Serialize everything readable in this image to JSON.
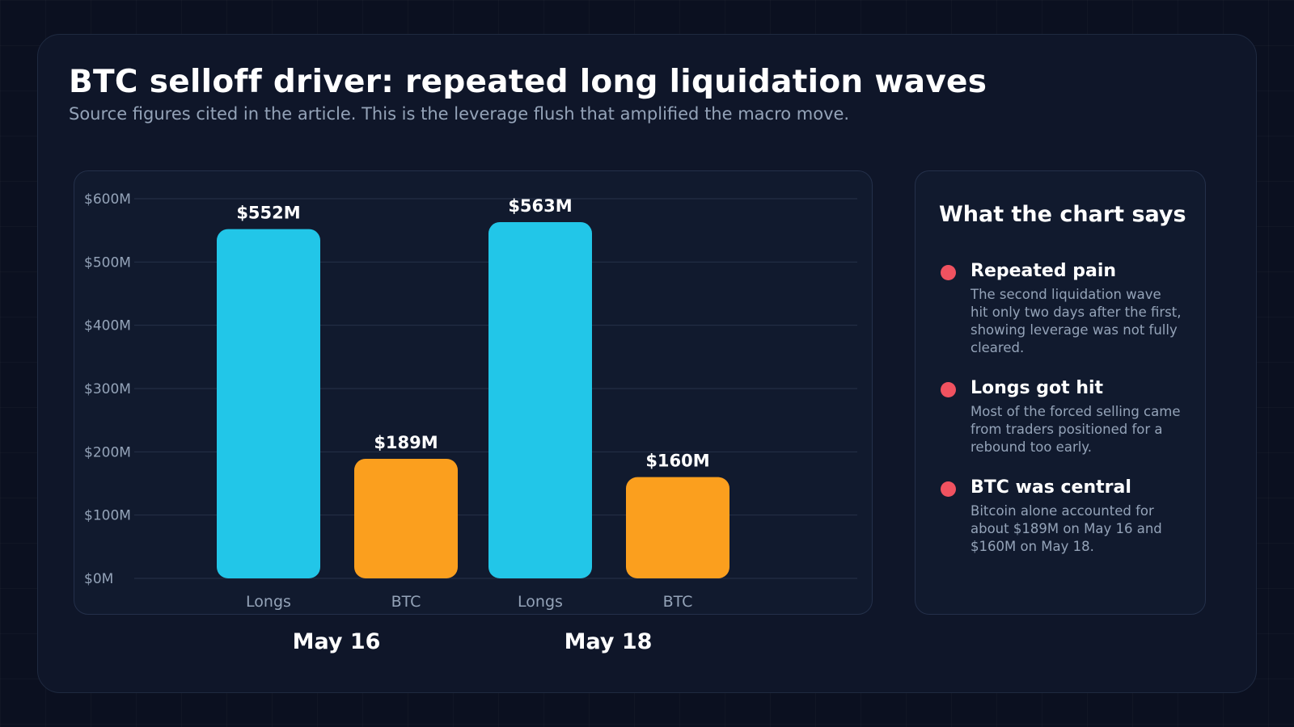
{
  "header": {
    "title": "BTC selloff driver: repeated long liquidation waves",
    "subtitle": "Source figures cited in the article. This is the leverage flush that amplified the macro move."
  },
  "colors": {
    "longs": "#22c6e8",
    "btc": "#fb9f1e",
    "bullet": "#f05260"
  },
  "chart_data": {
    "type": "bar",
    "ylim": [
      0,
      600
    ],
    "y_ticks": [
      "$0M",
      "$100M",
      "$200M",
      "$300M",
      "$400M",
      "$500M",
      "$600M"
    ],
    "grid": true,
    "groups": [
      "May 16",
      "May 18"
    ],
    "bars": [
      {
        "group": "May 16",
        "category": "Longs",
        "value": 552,
        "label": "$552M",
        "color_key": "longs"
      },
      {
        "group": "May 16",
        "category": "BTC",
        "value": 189,
        "label": "$189M",
        "color_key": "btc"
      },
      {
        "group": "May 18",
        "category": "Longs",
        "value": 563,
        "label": "$563M",
        "color_key": "longs"
      },
      {
        "group": "May 18",
        "category": "BTC",
        "value": 160,
        "label": "$160M",
        "color_key": "btc"
      }
    ]
  },
  "side_panel": {
    "title": "What the chart says",
    "notes": [
      {
        "title": "Repeated pain",
        "body": "The second liquidation wave hit only two days after the first, showing leverage was not fully cleared."
      },
      {
        "title": "Longs got hit",
        "body": "Most of the forced selling came from traders positioned for a rebound too early."
      },
      {
        "title": "BTC was central",
        "body": "Bitcoin alone accounted for about $189M on May 16 and $160M on May 18."
      }
    ]
  }
}
